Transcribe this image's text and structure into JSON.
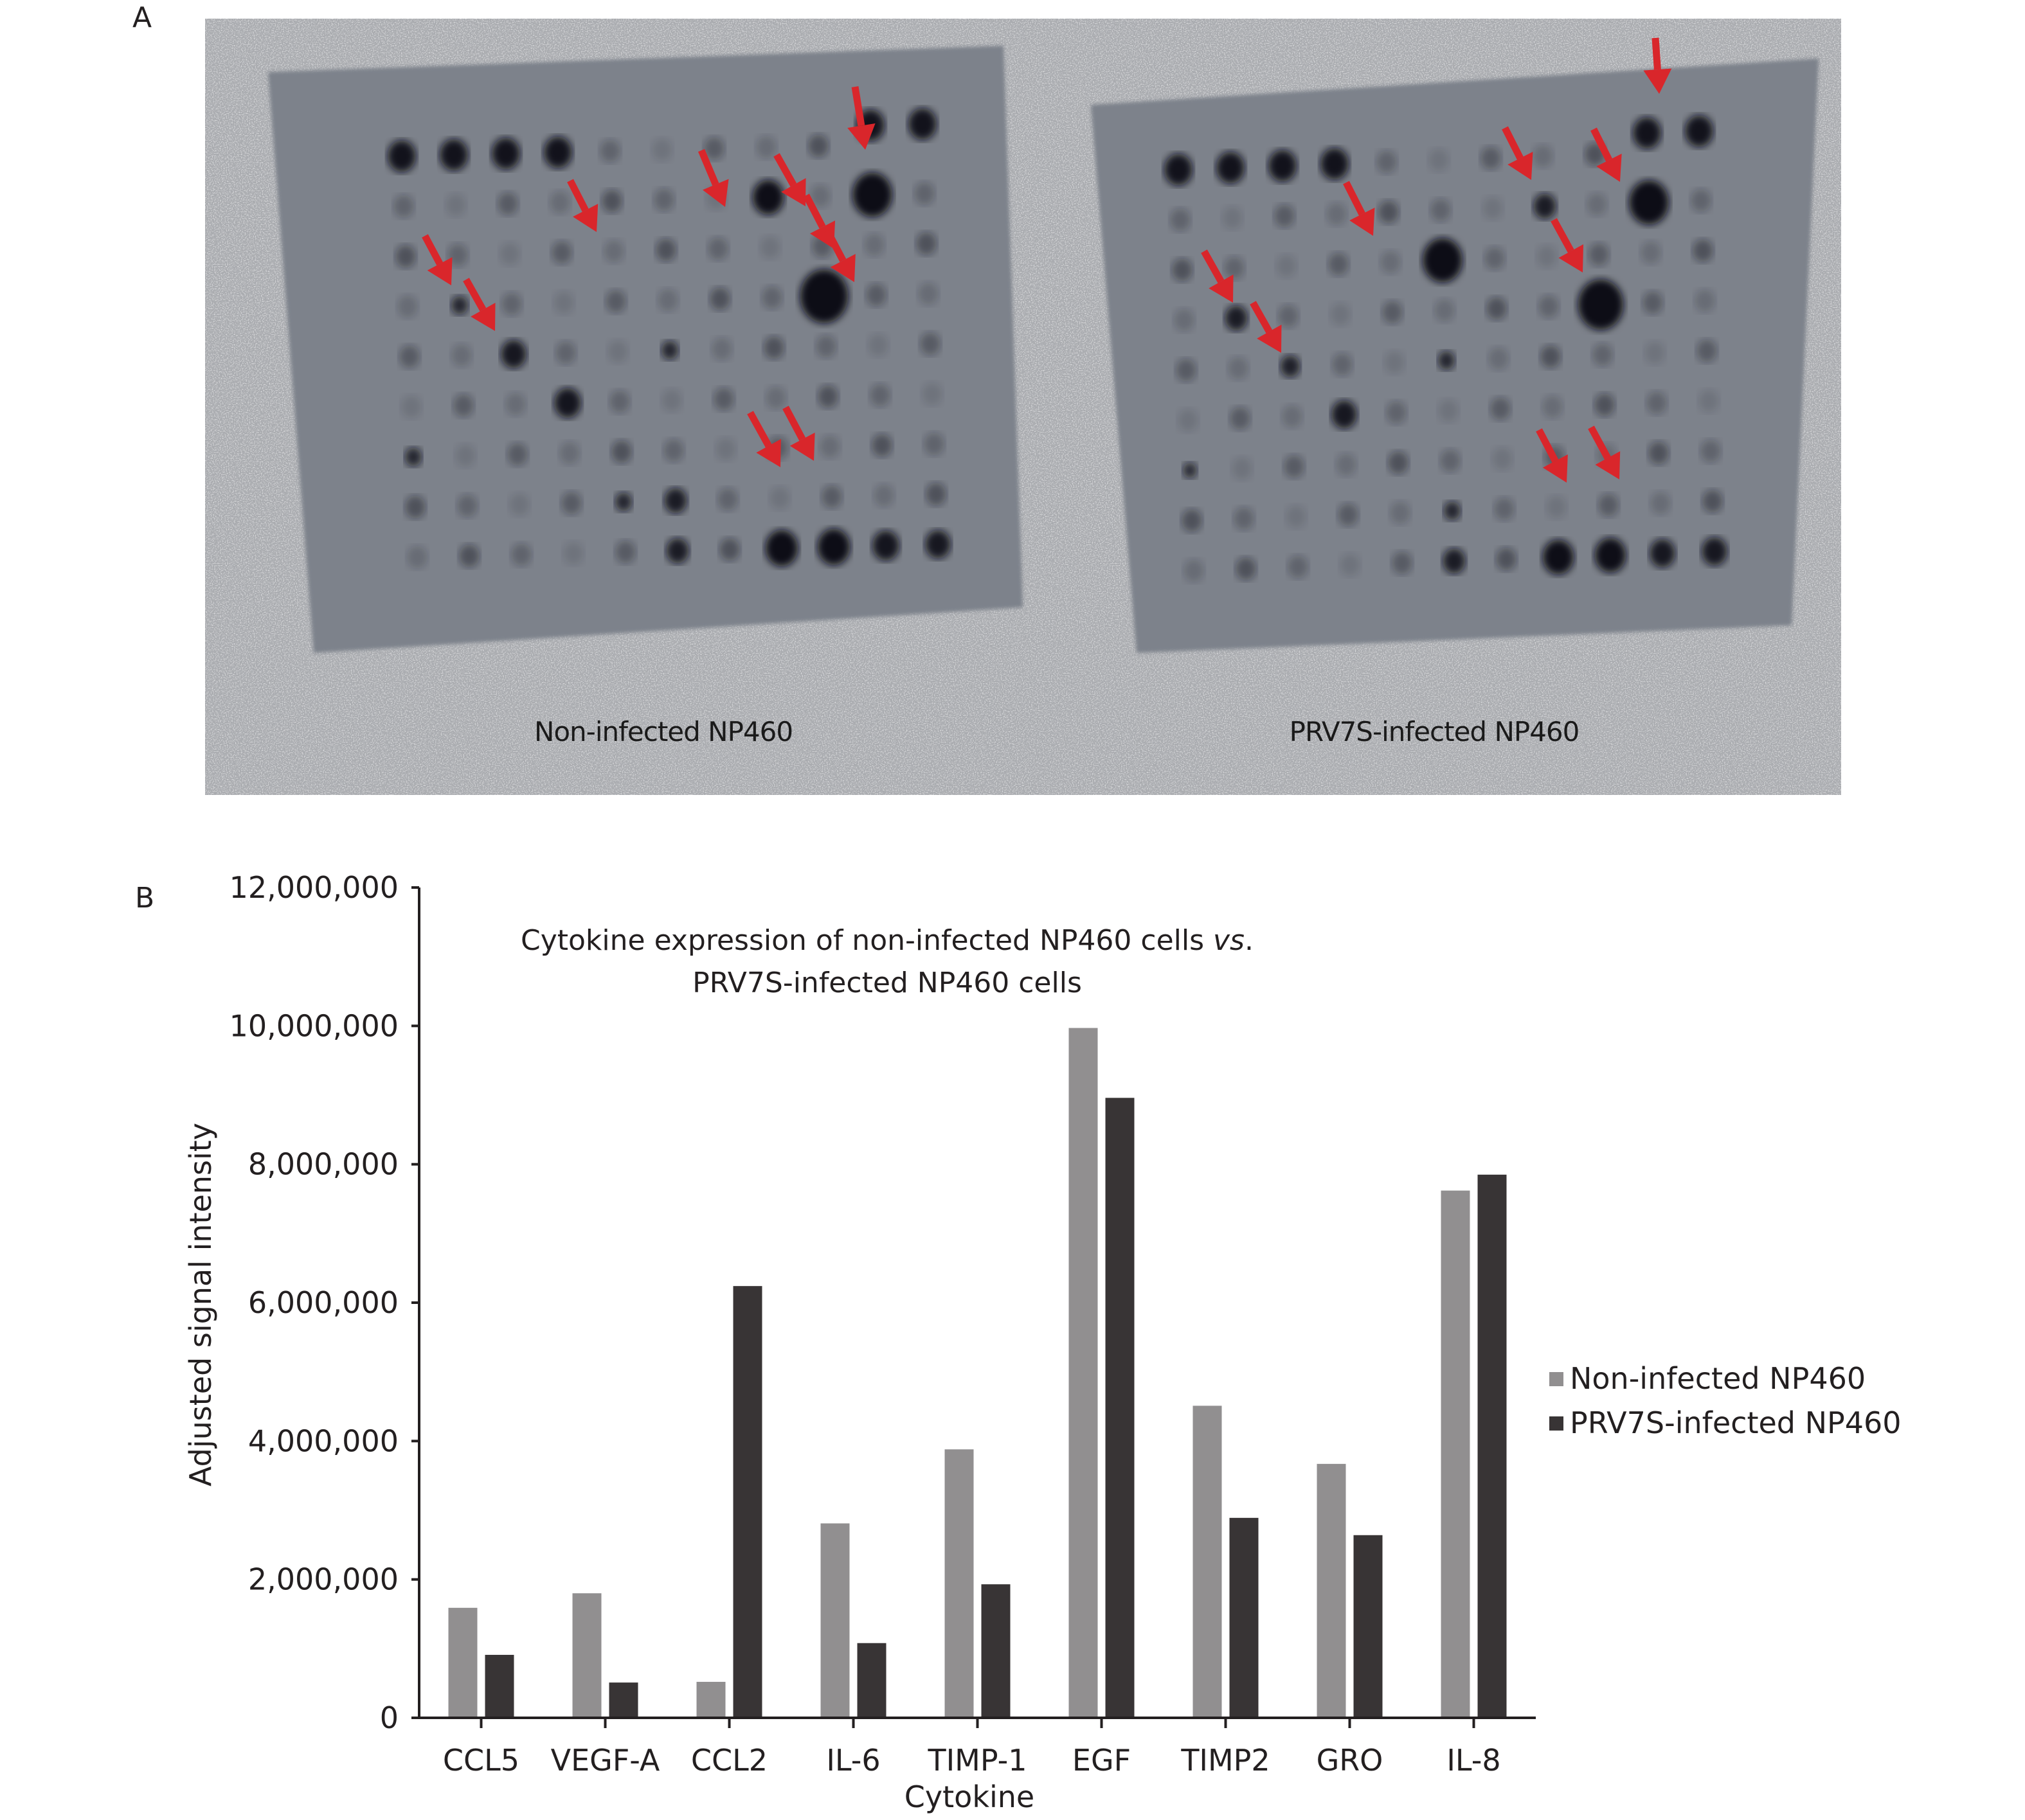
{
  "figure": {
    "panel_a_letter": "A",
    "panel_b_letter": "B"
  },
  "blot": {
    "left_label": "Non-infected NP460",
    "right_label": "PRV7S-infected NP460",
    "colors": {
      "background": "#a9abaf",
      "membrane": "#7d828b",
      "spot": "#0e0e12",
      "arrow": "#d9262b"
    }
  },
  "chart_data": {
    "type": "bar",
    "title_line1_prefix": "Cytokine expression of non-infected NP460 cells ",
    "title_line1_italic": "vs",
    "title_line1_suffix": ".",
    "title_line2": "PRV7S-infected NP460 cells",
    "xlabel": "Cytokine",
    "ylabel": "Adjusted signal intensity",
    "ylim": [
      0,
      12000000
    ],
    "yticks": [
      0,
      2000000,
      4000000,
      6000000,
      8000000,
      10000000,
      12000000
    ],
    "ytick_labels": [
      "0",
      "2,000,000",
      "4,000,000",
      "6,000,000",
      "8,000,000",
      "10,000,000",
      "12,000,000"
    ],
    "categories": [
      "CCL5",
      "VEGF-A",
      "CCL2",
      "IL-6",
      "TIMP-1",
      "EGF",
      "TIMP2",
      "GRO",
      "IL-8"
    ],
    "series": [
      {
        "name": "Non-infected NP460",
        "color": "#918f90",
        "values": [
          1590000,
          1800000,
          520000,
          2810000,
          3880000,
          9970000,
          4510000,
          3670000,
          7620000
        ]
      },
      {
        "name": "PRV7S-infected NP460",
        "color": "#383435",
        "values": [
          910000,
          510000,
          6240000,
          1080000,
          1930000,
          8960000,
          2890000,
          2640000,
          7850000
        ]
      }
    ],
    "legend_position": "right",
    "grid": false
  }
}
